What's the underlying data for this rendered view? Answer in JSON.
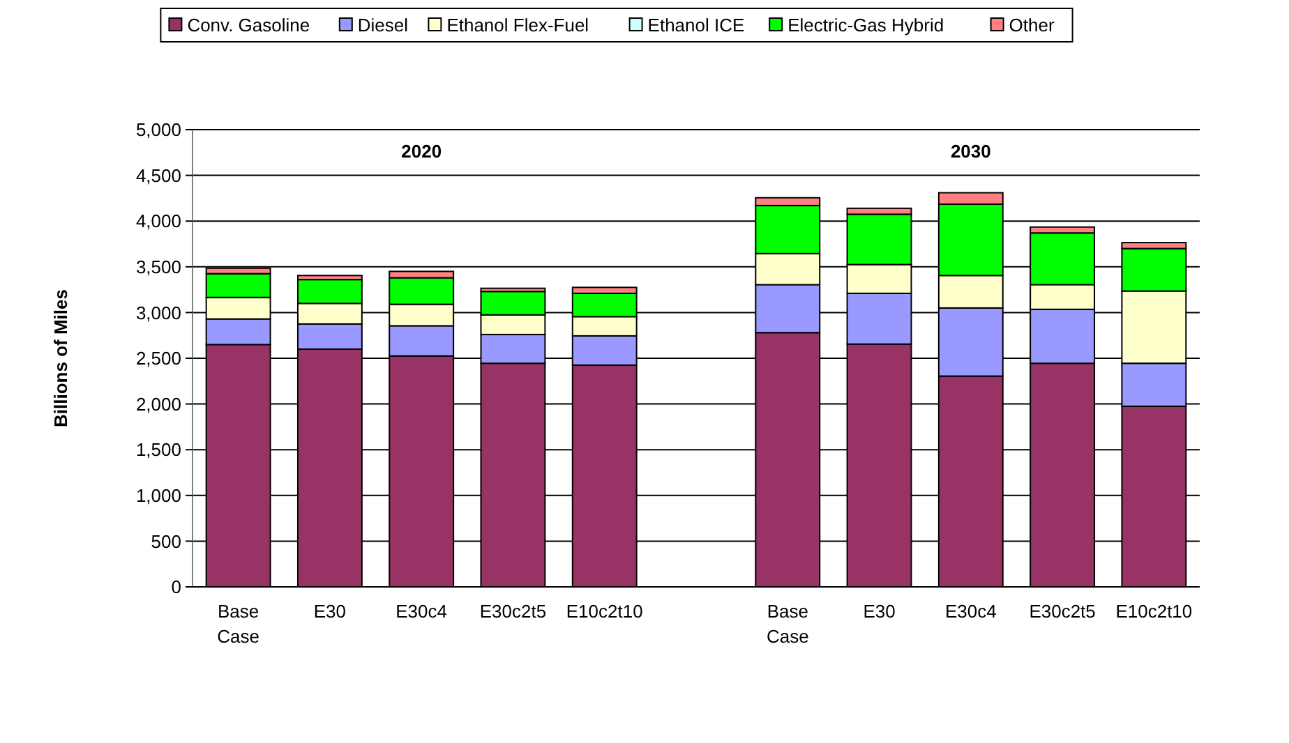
{
  "chart_data": {
    "type": "bar",
    "stacked": true,
    "ylabel": "Billions of Miles",
    "categories": [
      "Base Case",
      "E30",
      "E30c4",
      "E30c2t5",
      "E10c2t10",
      null,
      "Base Case",
      "E30",
      "E30c4",
      "E30c2t5",
      "E10c2t10"
    ],
    "series": [
      {
        "name": "Conv. Gasoline",
        "color": "#993366",
        "values": [
          2650,
          2600,
          2525,
          2445,
          2425,
          null,
          2780,
          2655,
          2305,
          2445,
          1975
        ]
      },
      {
        "name": "Diesel",
        "color": "#9999ff",
        "values": [
          280,
          275,
          330,
          315,
          320,
          null,
          525,
          555,
          745,
          590,
          470
        ]
      },
      {
        "name": "Ethanol Flex-Fuel",
        "color": "#ffffcc",
        "values": [
          235,
          225,
          235,
          215,
          210,
          null,
          340,
          315,
          355,
          270,
          790
        ]
      },
      {
        "name": "Ethanol ICE",
        "color": "#ccffff",
        "values": [
          0,
          0,
          0,
          0,
          0,
          null,
          0,
          0,
          0,
          0,
          0
        ]
      },
      {
        "name": "Electric-Gas Hybrid",
        "color": "#00ff00",
        "values": [
          260,
          260,
          290,
          255,
          255,
          null,
          525,
          550,
          780,
          565,
          465
        ]
      },
      {
        "name": "Other",
        "color": "#ff8080",
        "values": [
          60,
          45,
          70,
          35,
          65,
          null,
          85,
          65,
          125,
          65,
          65
        ]
      }
    ],
    "annotations": [
      "2020",
      "2030"
    ],
    "ylim": [
      0,
      5000
    ],
    "yticks": [
      {
        "value": 0,
        "label": "0"
      },
      {
        "value": 500,
        "label": "500"
      },
      {
        "value": 1000,
        "label": "1,000"
      },
      {
        "value": 1500,
        "label": "1,500"
      },
      {
        "value": 2000,
        "label": "2,000"
      },
      {
        "value": 2500,
        "label": "2,500"
      },
      {
        "value": 3000,
        "label": "3,000"
      },
      {
        "value": 3500,
        "label": "3,500"
      },
      {
        "value": 4000,
        "label": "4,000"
      },
      {
        "value": 4500,
        "label": "4,500"
      },
      {
        "value": 5000,
        "label": "5,000"
      }
    ],
    "grid": "y",
    "legend": "top"
  }
}
